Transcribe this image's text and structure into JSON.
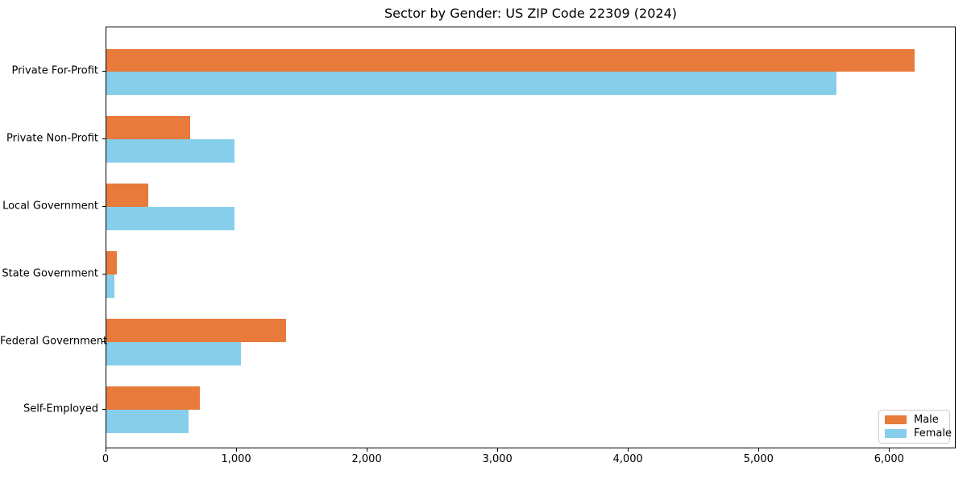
{
  "chart_data": {
    "type": "bar",
    "orientation": "horizontal",
    "title": "Sector by Gender: US ZIP Code 22309 (2024)",
    "categories": [
      "Private For-Profit",
      "Private Non-Profit",
      "Local Government",
      "State Government",
      "Federal Government",
      "Self-Employed"
    ],
    "series": [
      {
        "name": "Male",
        "color": "#e87a3c",
        "values": [
          6200,
          640,
          320,
          80,
          1380,
          720
        ]
      },
      {
        "name": "Female",
        "color": "#87ceeb",
        "values": [
          5600,
          980,
          980,
          60,
          1030,
          630
        ]
      }
    ],
    "xlabel": "",
    "ylabel": "",
    "xlim": [
      0,
      6510
    ],
    "xticks": [
      0,
      1000,
      2000,
      3000,
      4000,
      5000,
      6000
    ],
    "xtick_labels": [
      "0",
      "1,000",
      "2,000",
      "3,000",
      "4,000",
      "5,000",
      "6,000"
    ],
    "grid": false,
    "legend": {
      "position": "lower right",
      "entries": [
        "Male",
        "Female"
      ]
    }
  }
}
